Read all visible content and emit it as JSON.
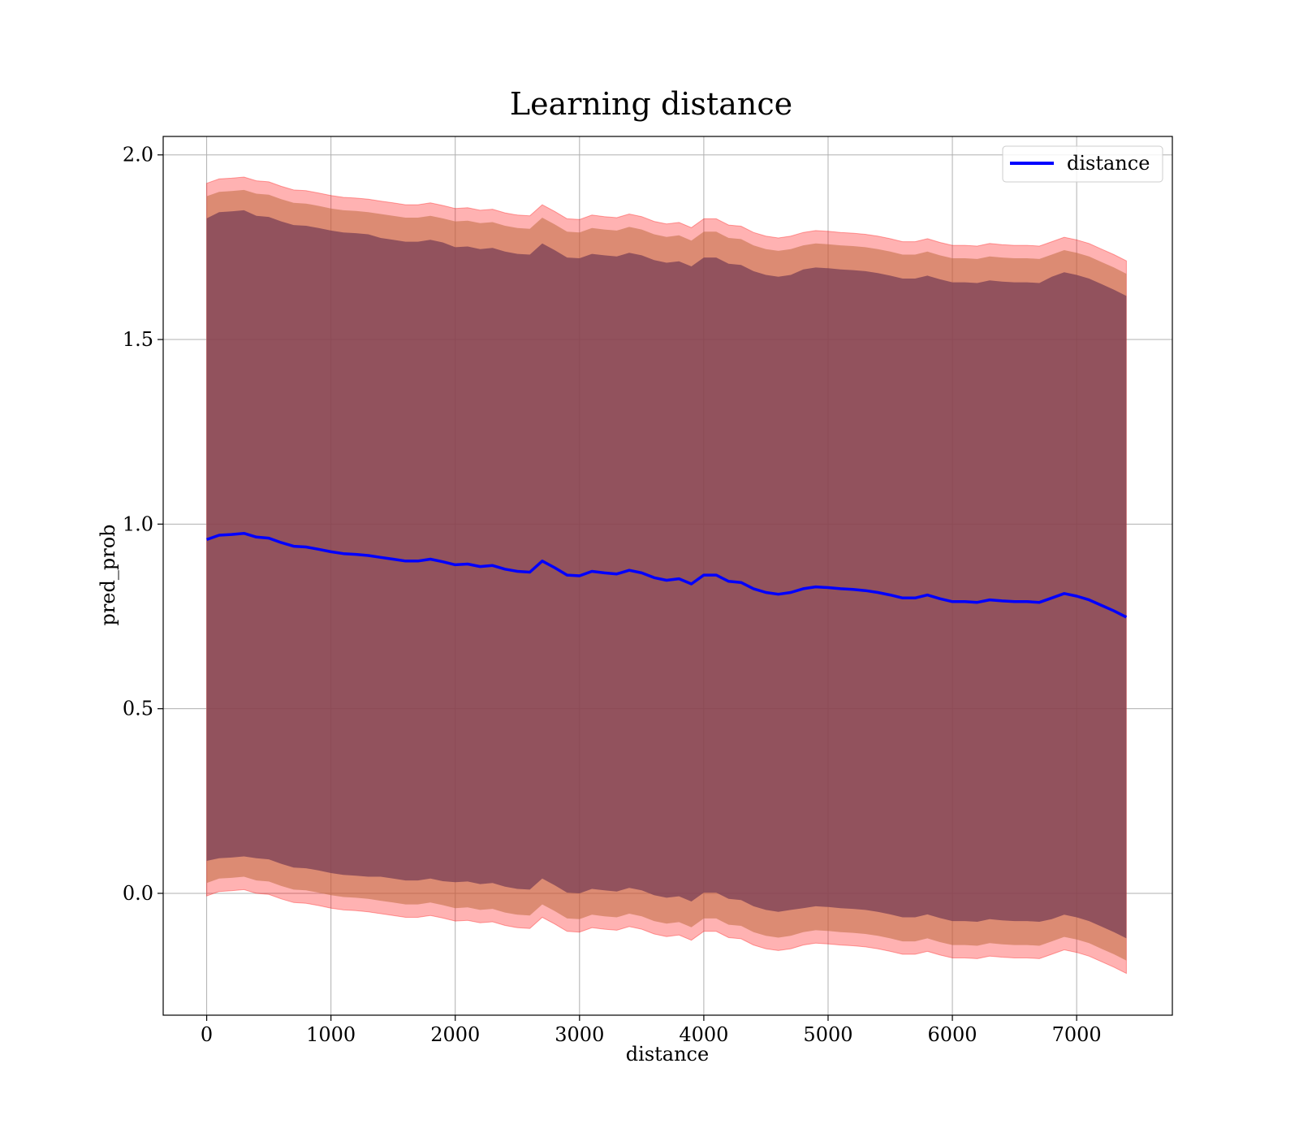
{
  "chart_data": {
    "type": "line",
    "title": "Learning distance",
    "xlabel": "distance",
    "ylabel": "pred_prob",
    "xlim": [
      -350,
      7770
    ],
    "ylim": [
      -0.33,
      2.05
    ],
    "xticks": [
      0,
      1000,
      2000,
      3000,
      4000,
      5000,
      6000,
      7000
    ],
    "xtick_labels": [
      "0",
      "1000",
      "2000",
      "3000",
      "4000",
      "5000",
      "6000",
      "7000"
    ],
    "yticks": [
      0.0,
      0.5,
      1.0,
      1.5,
      2.0
    ],
    "ytick_labels": [
      "0.0",
      "0.5",
      "1.0",
      "1.5",
      "2.0"
    ],
    "grid": true,
    "legend": {
      "position": "top-right",
      "entries": [
        "distance"
      ]
    },
    "colors": {
      "line": "#0000ff",
      "band_outer": "#ff0000",
      "band_middle": "#bf6b3f",
      "band_inner": "#7a3f55",
      "grid": "#b0b0b0"
    },
    "series": [
      {
        "name": "distance",
        "x": [
          0,
          100,
          200,
          300,
          400,
          500,
          600,
          700,
          800,
          900,
          1000,
          1100,
          1200,
          1300,
          1400,
          1500,
          1600,
          1700,
          1800,
          1900,
          2000,
          2100,
          2200,
          2300,
          2400,
          2500,
          2600,
          2700,
          2800,
          2900,
          3000,
          3100,
          3200,
          3300,
          3400,
          3500,
          3600,
          3700,
          3800,
          3900,
          4000,
          4100,
          4200,
          4300,
          4400,
          4500,
          4600,
          4700,
          4800,
          4900,
          5000,
          5100,
          5200,
          5300,
          5400,
          5500,
          5600,
          5700,
          5800,
          5900,
          6000,
          6100,
          6200,
          6300,
          6400,
          6500,
          6600,
          6700,
          6800,
          6900,
          7000,
          7100,
          7200,
          7300,
          7400
        ],
        "y": [
          0.958,
          0.97,
          0.972,
          0.975,
          0.965,
          0.962,
          0.95,
          0.94,
          0.938,
          0.932,
          0.925,
          0.92,
          0.918,
          0.915,
          0.91,
          0.905,
          0.9,
          0.9,
          0.905,
          0.898,
          0.89,
          0.892,
          0.885,
          0.888,
          0.878,
          0.872,
          0.87,
          0.9,
          0.882,
          0.862,
          0.86,
          0.872,
          0.868,
          0.865,
          0.875,
          0.868,
          0.855,
          0.848,
          0.852,
          0.838,
          0.862,
          0.862,
          0.845,
          0.842,
          0.825,
          0.815,
          0.81,
          0.815,
          0.825,
          0.83,
          0.828,
          0.825,
          0.823,
          0.82,
          0.815,
          0.808,
          0.8,
          0.8,
          0.808,
          0.798,
          0.79,
          0.79,
          0.788,
          0.795,
          0.792,
          0.79,
          0.79,
          0.788,
          0.8,
          0.812,
          0.805,
          0.795,
          0.78,
          0.765,
          0.748
        ],
        "band_inner_halfwidth": [
          0.87,
          0.875,
          0.875,
          0.875,
          0.87,
          0.87,
          0.87,
          0.87,
          0.87,
          0.87,
          0.87,
          0.87,
          0.87,
          0.87,
          0.865,
          0.865,
          0.865,
          0.865,
          0.865,
          0.865,
          0.86,
          0.86,
          0.86,
          0.86,
          0.86,
          0.86,
          0.86,
          0.86,
          0.86,
          0.86,
          0.86,
          0.86,
          0.86,
          0.86,
          0.86,
          0.86,
          0.86,
          0.86,
          0.86,
          0.86,
          0.86,
          0.86,
          0.86,
          0.86,
          0.86,
          0.86,
          0.86,
          0.86,
          0.865,
          0.865,
          0.865,
          0.865,
          0.865,
          0.865,
          0.865,
          0.865,
          0.865,
          0.865,
          0.865,
          0.865,
          0.865,
          0.865,
          0.865,
          0.865,
          0.865,
          0.865,
          0.865,
          0.865,
          0.87,
          0.87,
          0.87,
          0.87,
          0.87,
          0.87,
          0.87
        ],
        "band_middle_halfwidth": [
          0.93,
          0.93,
          0.93,
          0.93,
          0.93,
          0.93,
          0.93,
          0.93,
          0.93,
          0.93,
          0.93,
          0.93,
          0.93,
          0.93,
          0.93,
          0.93,
          0.93,
          0.93,
          0.93,
          0.93,
          0.93,
          0.93,
          0.93,
          0.93,
          0.93,
          0.93,
          0.93,
          0.93,
          0.93,
          0.93,
          0.93,
          0.93,
          0.93,
          0.93,
          0.93,
          0.93,
          0.93,
          0.93,
          0.93,
          0.93,
          0.93,
          0.93,
          0.93,
          0.93,
          0.93,
          0.93,
          0.93,
          0.93,
          0.93,
          0.93,
          0.93,
          0.93,
          0.93,
          0.93,
          0.93,
          0.93,
          0.93,
          0.93,
          0.93,
          0.93,
          0.93,
          0.93,
          0.93,
          0.93,
          0.93,
          0.93,
          0.93,
          0.93,
          0.93,
          0.93,
          0.93,
          0.93,
          0.93,
          0.93,
          0.93
        ],
        "band_outer_halfwidth": [
          0.965,
          0.965,
          0.965,
          0.965,
          0.965,
          0.965,
          0.965,
          0.965,
          0.965,
          0.965,
          0.965,
          0.965,
          0.965,
          0.965,
          0.965,
          0.965,
          0.965,
          0.965,
          0.965,
          0.965,
          0.965,
          0.965,
          0.965,
          0.965,
          0.965,
          0.965,
          0.965,
          0.965,
          0.965,
          0.965,
          0.965,
          0.965,
          0.965,
          0.965,
          0.965,
          0.965,
          0.965,
          0.965,
          0.965,
          0.965,
          0.965,
          0.965,
          0.965,
          0.965,
          0.965,
          0.965,
          0.965,
          0.965,
          0.965,
          0.965,
          0.965,
          0.965,
          0.965,
          0.965,
          0.965,
          0.965,
          0.965,
          0.965,
          0.965,
          0.965,
          0.965,
          0.965,
          0.965,
          0.965,
          0.965,
          0.965,
          0.965,
          0.965,
          0.965,
          0.965,
          0.965,
          0.965,
          0.965,
          0.965,
          0.965
        ]
      }
    ]
  }
}
